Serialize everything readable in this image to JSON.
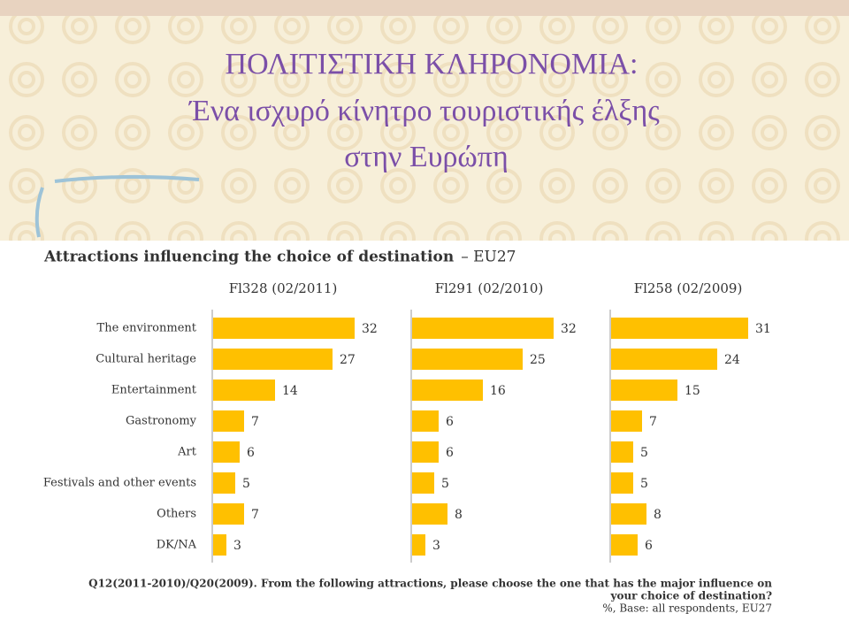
{
  "slide": {
    "title": [
      "ΠΟΛΙΤΙΣΤΙΚΗ ΚΛΗΡΟΝΟΜΙΑ:",
      "Ένα  ισχυρό κίνητρο τουριστικής έλξης",
      "στην Ευρώπη"
    ]
  },
  "chart_data": {
    "type": "bar",
    "orientation": "horizontal",
    "title": "Attractions influencing the choice of destination",
    "subtitle": "– EU27",
    "categories": [
      "The environment",
      "Cultural heritage",
      "Entertainment",
      "Gastronomy",
      "Art",
      "Festivals and other events",
      "Others",
      "DK/NA"
    ],
    "series": [
      {
        "name": "Fl328 (02/2011)",
        "color": "#ffc000",
        "values": [
          32,
          27,
          14,
          7,
          6,
          5,
          7,
          3
        ]
      },
      {
        "name": "Fl291 (02/2010)",
        "color": "#ffc000",
        "values": [
          32,
          25,
          16,
          6,
          6,
          5,
          8,
          3
        ]
      },
      {
        "name": "Fl258 (02/2009)",
        "color": "#ffc000",
        "values": [
          31,
          24,
          15,
          7,
          5,
          5,
          8,
          6
        ]
      }
    ],
    "footnote": [
      "Q12(2011-2010)/Q20(2009). From the following attractions, please choose the one that has the major influence on",
      "your choice of destination?",
      "%, Base: all respondents, EU27"
    ]
  }
}
